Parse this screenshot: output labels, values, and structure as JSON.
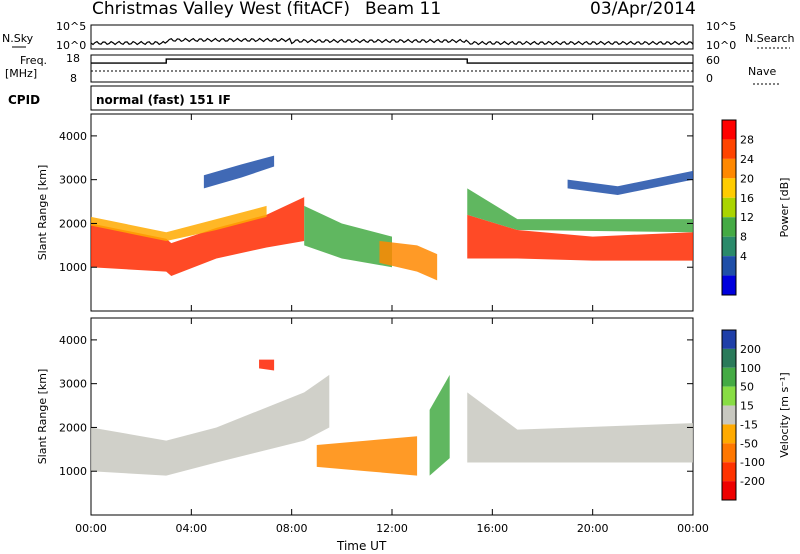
{
  "header": {
    "title": "Christmas Valley West (fitACF)",
    "beam": "Beam 11",
    "date": "03/Apr/2014"
  },
  "noise_panel": {
    "left_label": "N.Sky",
    "right_label": "N.Search",
    "left_ticks": [
      "10^5",
      "10^0"
    ],
    "right_ticks": [
      "10^5",
      "10^0"
    ]
  },
  "freq_panel": {
    "left_label_1": "Freq.",
    "left_label_2": "[MHz]",
    "right_label": "Nave",
    "left_ticks": [
      "18",
      "8"
    ],
    "right_ticks": [
      "60",
      "0"
    ],
    "freq_steps": [
      {
        "from": 0,
        "to": 3,
        "level": 0.3
      },
      {
        "from": 3,
        "to": 15,
        "level": 0.15
      },
      {
        "from": 15,
        "to": 24,
        "level": 0.3
      }
    ]
  },
  "cpid": {
    "label": "CPID",
    "text": "normal (fast) 151 IF"
  },
  "chart_data": [
    {
      "type": "heatmap",
      "title": "",
      "xlabel": "Time UT",
      "ylabel": "Slant Range [km]",
      "xlim": [
        0,
        24
      ],
      "ylim": [
        0,
        4500
      ],
      "x_ticks": [
        "00:00",
        "04:00",
        "08:00",
        "12:00",
        "16:00",
        "20:00",
        "00:00"
      ],
      "y_ticks": [
        "1000",
        "2000",
        "3000",
        "4000"
      ],
      "colorbar": {
        "label": "Power [dB]",
        "ticks": [
          "28",
          "24",
          "20",
          "16",
          "12",
          "8",
          "4"
        ],
        "colors": [
          "#ff0000",
          "#ff4400",
          "#ff8800",
          "#ffcc00",
          "#aad400",
          "#44aa44",
          "#2a8a6a",
          "#1f4fa8",
          "#0000dd"
        ]
      },
      "echo_bands": [
        {
          "name": "main_scatter",
          "color": "#ff2a00",
          "points": [
            [
              0,
              1000,
              2000
            ],
            [
              3,
              900,
              1650
            ],
            [
              3.2,
              800,
              1550
            ],
            [
              5,
              1200,
              1900
            ],
            [
              7,
              1450,
              2200
            ],
            [
              8.5,
              1600,
              2600
            ]
          ]
        },
        {
          "name": "main_scatter_edge",
          "color": "#ffaa00",
          "points": [
            [
              0,
              1950,
              2150
            ],
            [
              3,
              1600,
              1800
            ],
            [
              5,
              1850,
              2100
            ],
            [
              7,
              2150,
              2400
            ]
          ]
        },
        {
          "name": "midnight_fan_left",
          "color": "#44aa44",
          "points": [
            [
              8.5,
              1500,
              2400
            ],
            [
              10,
              1200,
              2000
            ],
            [
              12,
              1000,
              1700
            ]
          ]
        },
        {
          "name": "midnight_fan_right",
          "color": "#ff8800",
          "points": [
            [
              11.5,
              1100,
              1600
            ],
            [
              13,
              900,
              1500
            ],
            [
              13.8,
              700,
              1300
            ]
          ]
        },
        {
          "name": "post_sunrise",
          "color": "#ff2a00",
          "points": [
            [
              15,
              1200,
              2200
            ],
            [
              17,
              1200,
              1850
            ],
            [
              20,
              1150,
              1700
            ],
            [
              24,
              1150,
              1800
            ]
          ]
        },
        {
          "name": "post_sunrise_edge",
          "color": "#44aa44",
          "points": [
            [
              15,
              2200,
              2800
            ],
            [
              17,
              1850,
              2100
            ],
            [
              24,
              1800,
              2100
            ]
          ]
        },
        {
          "name": "upper_arc",
          "color": "#1f4fa8",
          "points": [
            [
              4.5,
              2800,
              3100
            ],
            [
              6,
              3050,
              3350
            ],
            [
              7.3,
              3300,
              3550
            ]
          ]
        },
        {
          "name": "evening_arc",
          "color": "#1f4fa8",
          "points": [
            [
              19,
              2800,
              3000
            ],
            [
              21,
              2650,
              2850
            ],
            [
              24,
              3000,
              3200
            ]
          ]
        }
      ]
    },
    {
      "type": "heatmap",
      "title": "",
      "xlabel": "Time UT",
      "ylabel": "Slant Range [km]",
      "xlim": [
        0,
        24
      ],
      "ylim": [
        0,
        4500
      ],
      "x_ticks": [
        "00:00",
        "04:00",
        "08:00",
        "12:00",
        "16:00",
        "20:00",
        "00:00"
      ],
      "y_ticks": [
        "1000",
        "2000",
        "3000",
        "4000"
      ],
      "colorbar": {
        "label": "Velocity [m s⁻¹]",
        "ticks": [
          "200",
          "100",
          "50",
          "15",
          "-15",
          "-50",
          "-100",
          "-200"
        ],
        "colors": [
          "#1f3fa8",
          "#2a7a5a",
          "#44aa44",
          "#88dd44",
          "#c8c8c0",
          "#ffaa00",
          "#ff7700",
          "#ff3300",
          "#ee0000"
        ]
      },
      "echo_bands": [
        {
          "name": "main_ground",
          "color": "#c8c8c0",
          "points": [
            [
              0,
              1000,
              2000
            ],
            [
              3,
              900,
              1700
            ],
            [
              5,
              1200,
              2000
            ],
            [
              8.5,
              1700,
              2800
            ],
            [
              9.5,
              2000,
              3200
            ]
          ]
        },
        {
          "name": "midnight_flow",
          "color": "#ff8800",
          "points": [
            [
              9,
              1100,
              1600
            ],
            [
              11,
              1000,
              1700
            ],
            [
              13,
              900,
              1800
            ]
          ]
        },
        {
          "name": "red_patch",
          "color": "#ff2200",
          "points": [
            [
              6.7,
              3350,
              3550
            ],
            [
              7.3,
              3300,
              3550
            ]
          ]
        },
        {
          "name": "green_spike",
          "color": "#44aa44",
          "points": [
            [
              13.5,
              900,
              2400
            ],
            [
              14.3,
              1300,
              3200
            ]
          ]
        },
        {
          "name": "post_sunrise",
          "color": "#c8c8c0",
          "points": [
            [
              15,
              1200,
              2800
            ],
            [
              17,
              1200,
              1950
            ],
            [
              24,
              1200,
              2100
            ]
          ]
        }
      ]
    }
  ]
}
